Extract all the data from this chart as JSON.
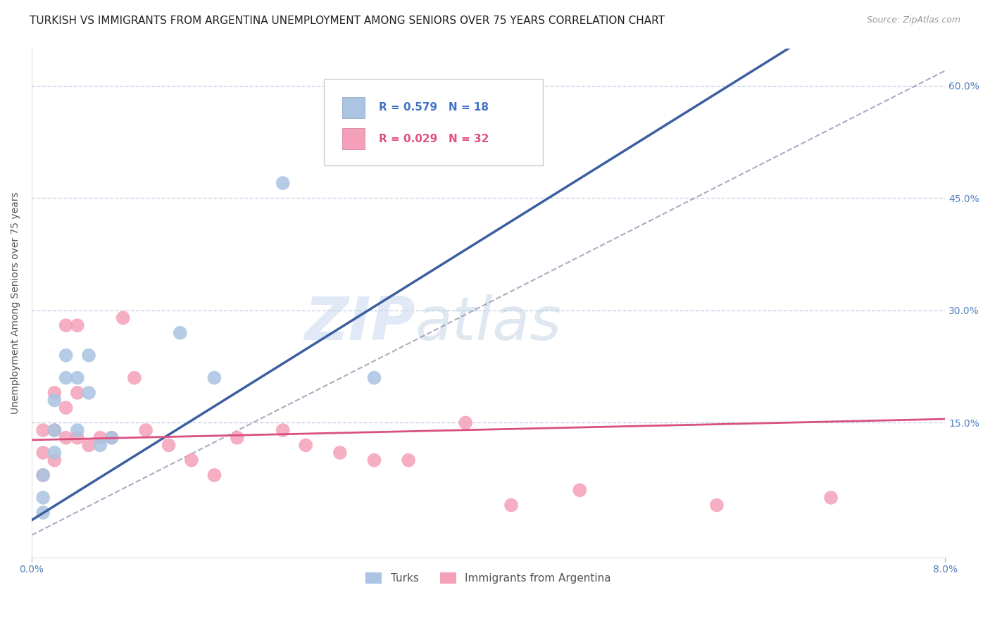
{
  "title": "TURKISH VS IMMIGRANTS FROM ARGENTINA UNEMPLOYMENT AMONG SENIORS OVER 75 YEARS CORRELATION CHART",
  "source": "Source: ZipAtlas.com",
  "ylabel": "Unemployment Among Seniors over 75 years",
  "xlim": [
    0.0,
    0.08
  ],
  "ylim": [
    -0.03,
    0.65
  ],
  "turks_x": [
    0.001,
    0.001,
    0.001,
    0.002,
    0.002,
    0.002,
    0.003,
    0.003,
    0.004,
    0.004,
    0.005,
    0.005,
    0.006,
    0.007,
    0.013,
    0.016,
    0.022,
    0.03
  ],
  "turks_y": [
    0.03,
    0.05,
    0.08,
    0.11,
    0.14,
    0.18,
    0.21,
    0.24,
    0.14,
    0.21,
    0.24,
    0.19,
    0.12,
    0.13,
    0.27,
    0.21,
    0.47,
    0.21
  ],
  "argentina_x": [
    0.001,
    0.001,
    0.001,
    0.002,
    0.002,
    0.002,
    0.003,
    0.003,
    0.003,
    0.004,
    0.004,
    0.004,
    0.005,
    0.006,
    0.007,
    0.008,
    0.009,
    0.01,
    0.012,
    0.014,
    0.016,
    0.018,
    0.022,
    0.024,
    0.027,
    0.03,
    0.033,
    0.038,
    0.042,
    0.048,
    0.06,
    0.07
  ],
  "argentina_y": [
    0.08,
    0.11,
    0.14,
    0.1,
    0.14,
    0.19,
    0.13,
    0.17,
    0.28,
    0.13,
    0.19,
    0.28,
    0.12,
    0.13,
    0.13,
    0.29,
    0.21,
    0.14,
    0.12,
    0.1,
    0.08,
    0.13,
    0.14,
    0.12,
    0.11,
    0.1,
    0.1,
    0.15,
    0.04,
    0.06,
    0.04,
    0.05
  ],
  "turks_color": "#aac4e2",
  "argentina_color": "#f4a0b8",
  "turks_line_color": "#3c5fa0",
  "argentina_line_color": "#d85080",
  "diagonal_color": "#8888aa",
  "R_turks": 0.579,
  "N_turks": 18,
  "R_argentina": 0.029,
  "N_argentina": 32,
  "legend_label_turks": "Turks",
  "legend_label_argentina": "Immigrants from Argentina",
  "watermark_zip": "ZIP",
  "watermark_atlas": "atlas",
  "grid_color": "#c8d4e8",
  "background_color": "#ffffff",
  "title_fontsize": 11,
  "axis_label_fontsize": 10,
  "tick_fontsize": 10,
  "legend_fontsize": 11,
  "legend_color_turks": "#4472c4",
  "legend_color_argentina": "#e05080"
}
